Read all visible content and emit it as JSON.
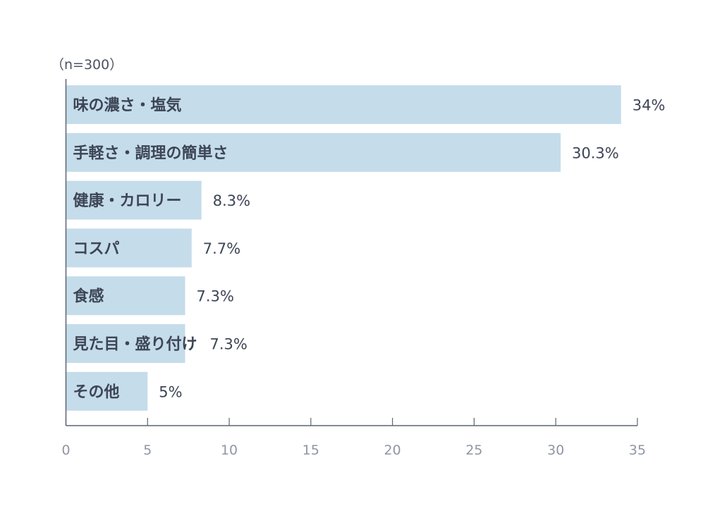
{
  "sample_note": "（n=300）",
  "chart_data": {
    "type": "bar",
    "orientation": "horizontal",
    "categories": [
      "味の濃さ・塩気",
      "手軽さ・調理の簡単さ",
      "健康・カロリー",
      "コスパ",
      "食感",
      "見た目・盛り付け",
      "その他"
    ],
    "values": [
      34,
      30.3,
      8.3,
      7.7,
      7.3,
      7.3,
      5
    ],
    "value_labels": [
      "34%",
      "30.3%",
      "8.3%",
      "7.7%",
      "7.3%",
      "7.3%",
      "5%"
    ],
    "title": "",
    "xlabel": "",
    "ylabel": "",
    "xlim": [
      0,
      35
    ],
    "x_ticks": [
      0,
      5,
      10,
      15,
      20,
      25,
      30,
      35
    ],
    "grid": false,
    "legend": "none",
    "colors": {
      "bar": "#c5dcea",
      "axis": "#5b6373",
      "category_text": "#3d4555",
      "value_text": "#3d4555",
      "tick_text": "#8f96a3"
    }
  }
}
